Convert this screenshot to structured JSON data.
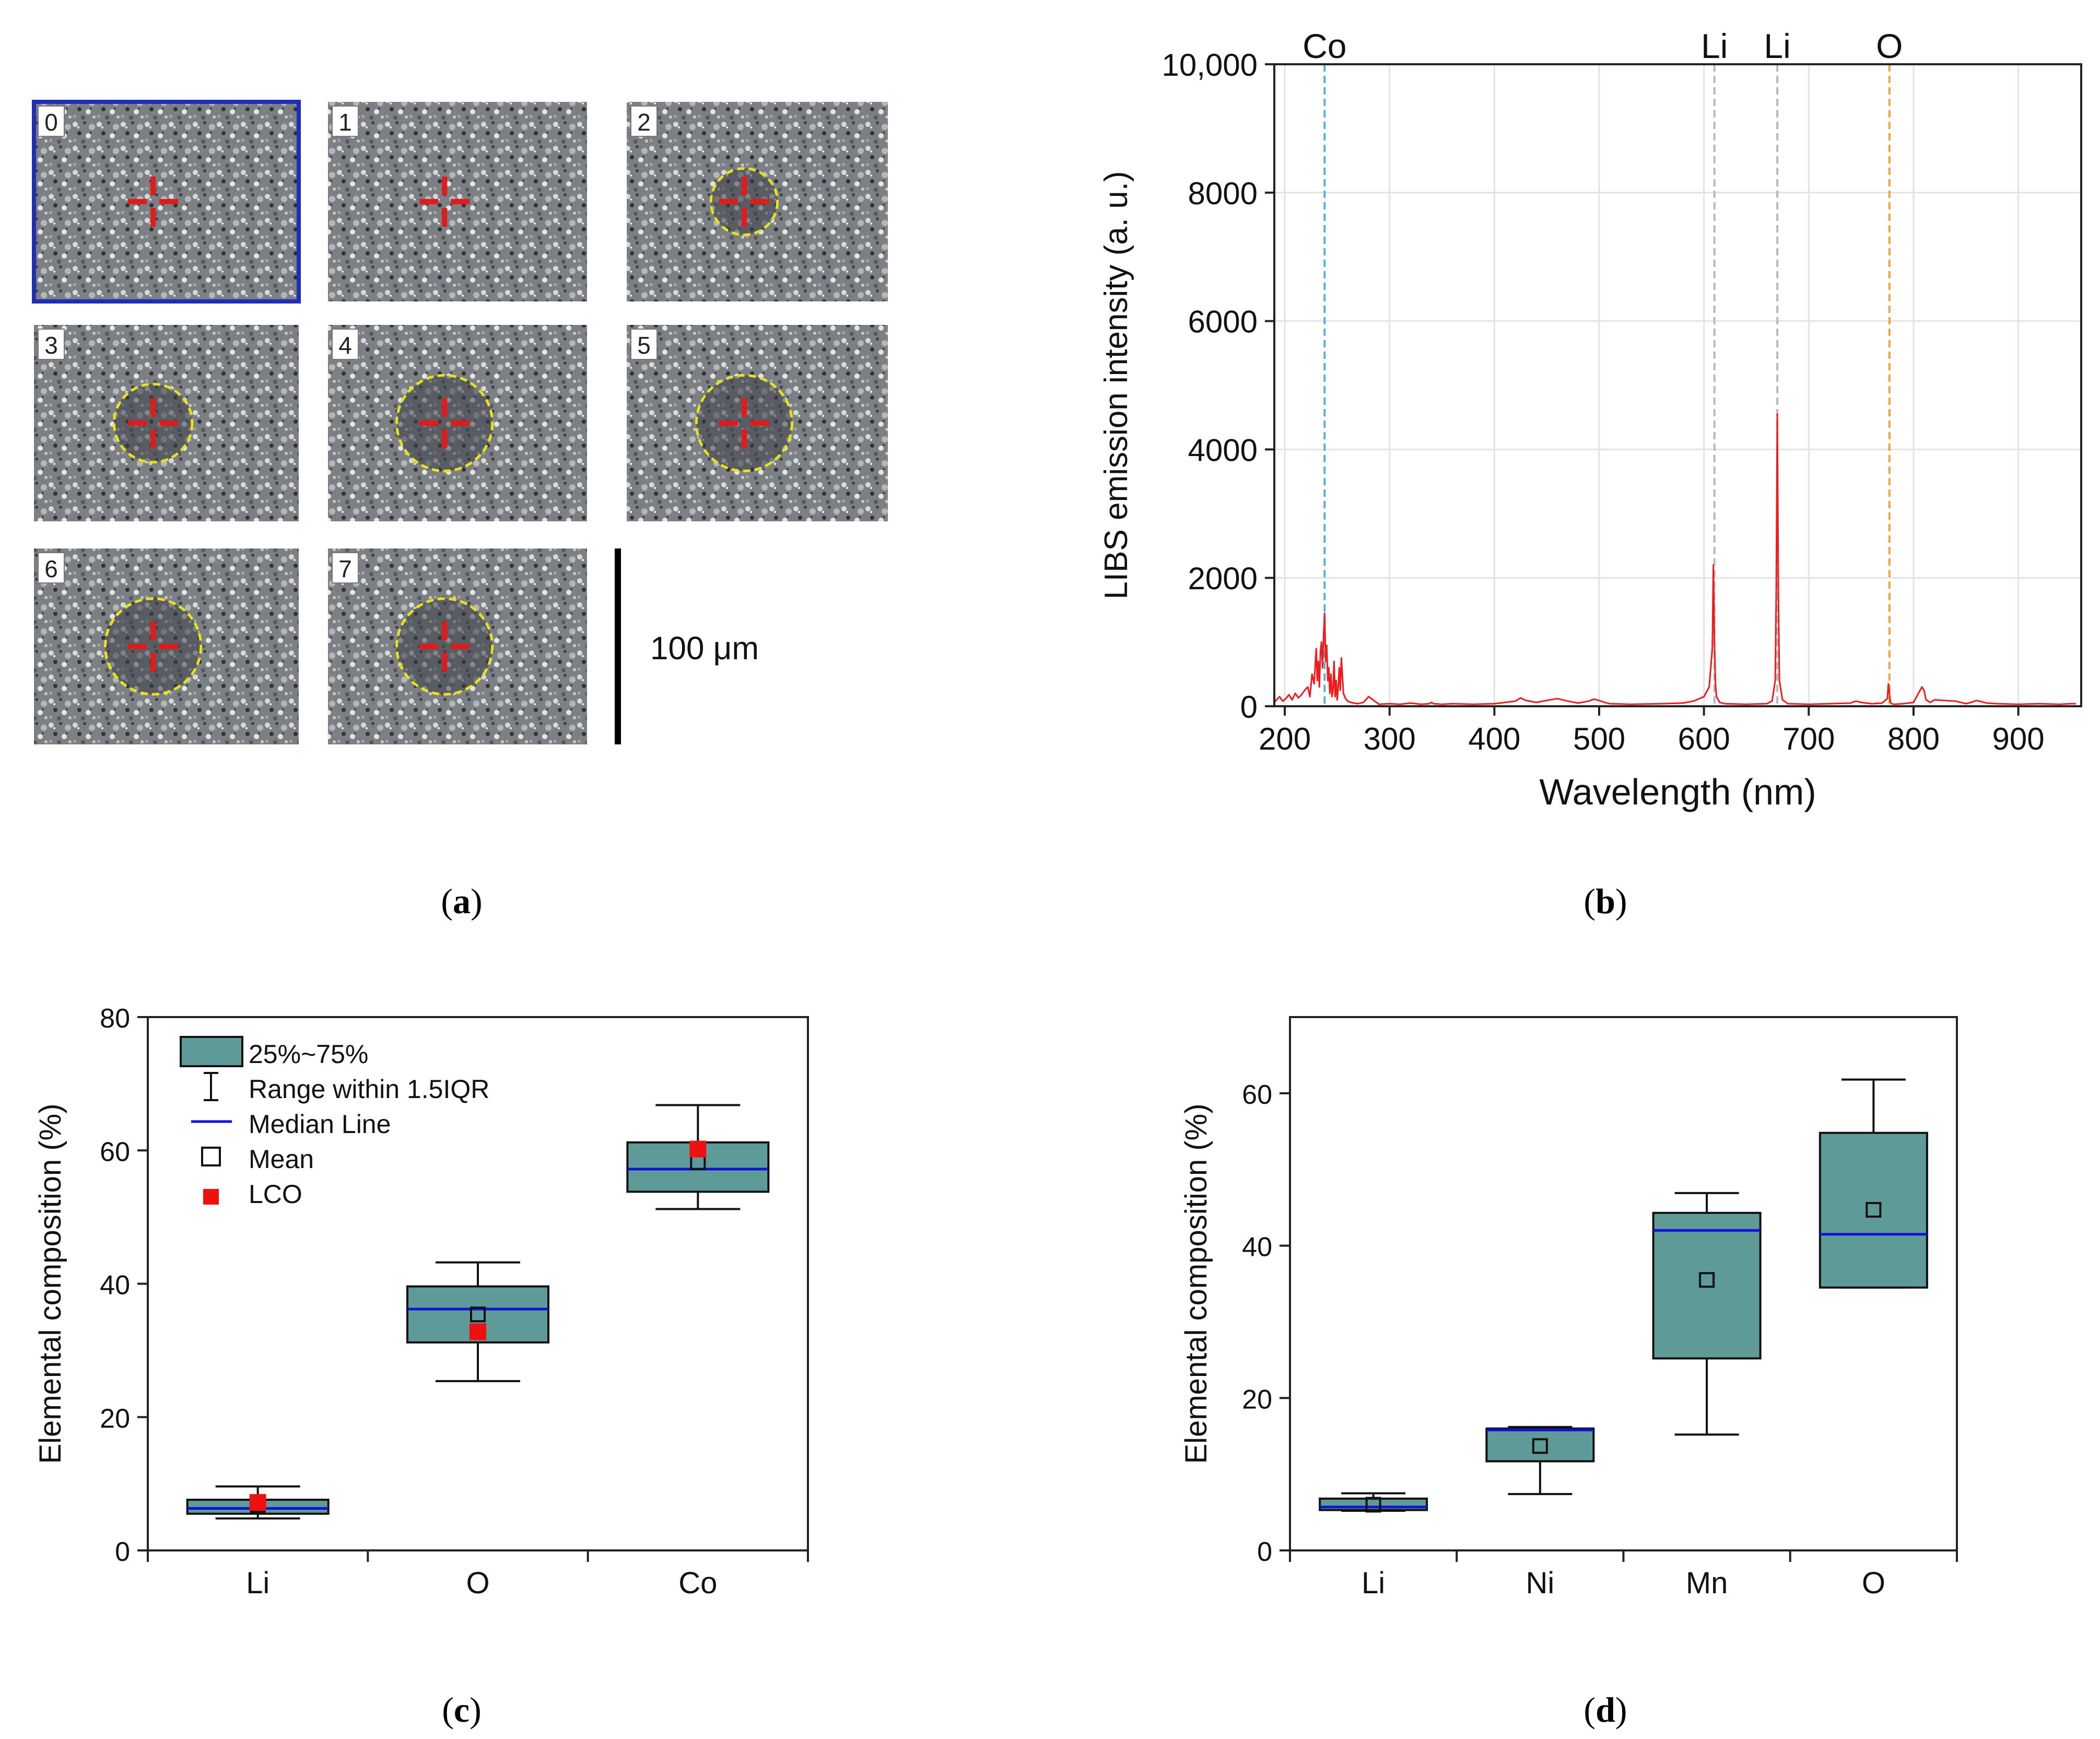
{
  "panels": {
    "a": {
      "label_letter": "a",
      "frames": [
        "0",
        "1",
        "2",
        "3",
        "4",
        "5",
        "6",
        "7"
      ],
      "selected_frame": "0",
      "ablation_crater_radius": [
        0,
        0,
        0.35,
        0.55,
        0.85,
        0.85,
        0.85,
        0.85
      ],
      "scale_bar_label": "100 μm",
      "colors": {
        "selected_border": "#1f2fb5",
        "crosshair": "#e01b1b",
        "crater_ring": "#e8e21a"
      }
    },
    "b": {
      "label_letter": "b",
      "element_labels": [
        "Co",
        "Li",
        "Li",
        "O"
      ]
    },
    "c": {
      "label_letter": "c"
    },
    "d": {
      "label_letter": "d"
    }
  },
  "chart_data": [
    {
      "id": "b",
      "type": "line",
      "title": "",
      "xlabel": "Wavelength (nm)",
      "ylabel": "LIBS emission intensity (a. u.)",
      "xlim": [
        190,
        960
      ],
      "ylim": [
        0,
        10000
      ],
      "xticks": [
        200,
        300,
        400,
        500,
        600,
        700,
        800,
        900
      ],
      "yticks": [
        0,
        2000,
        4000,
        6000,
        8000,
        10000
      ],
      "ytick_labels": [
        "0",
        "2000",
        "4000",
        "6000",
        "8000",
        "10,000"
      ],
      "grid": true,
      "series": [
        {
          "name": "LIBS spectrum",
          "color": "#ee1c1c",
          "x": [
            190,
            195,
            198,
            201,
            204,
            207,
            210,
            213,
            216,
            219,
            222,
            224,
            226,
            228,
            230,
            231,
            232,
            233,
            234,
            235,
            236,
            237,
            238,
            239,
            240,
            241,
            242,
            243,
            244,
            245,
            246,
            247,
            248,
            249,
            250,
            251,
            252,
            253,
            254,
            256,
            258,
            260,
            263,
            266,
            270,
            275,
            280,
            290,
            300,
            310,
            320,
            330,
            338,
            340,
            342,
            350,
            360,
            380,
            400,
            420,
            425,
            430,
            440,
            450,
            460,
            470,
            480,
            490,
            495,
            500,
            505,
            510,
            530,
            560,
            580,
            590,
            600,
            605,
            608,
            609,
            610,
            611,
            612,
            615,
            620,
            640,
            660,
            665,
            668,
            669,
            670,
            671,
            672,
            675,
            680,
            700,
            720,
            740,
            745,
            750,
            760,
            770,
            775,
            776,
            777,
            778,
            779,
            782,
            790,
            800,
            808,
            810,
            812,
            816,
            820,
            840,
            850,
            855,
            860,
            870,
            880,
            900,
            920,
            940,
            950,
            955
          ],
          "y": [
            60,
            150,
            80,
            120,
            180,
            100,
            200,
            130,
            180,
            250,
            300,
            150,
            500,
            350,
            900,
            400,
            700,
            300,
            850,
            1000,
            600,
            1100,
            1450,
            700,
            950,
            400,
            600,
            200,
            500,
            150,
            250,
            700,
            150,
            400,
            100,
            300,
            600,
            250,
            750,
            200,
            120,
            80,
            60,
            50,
            40,
            60,
            150,
            30,
            40,
            30,
            50,
            30,
            40,
            60,
            40,
            30,
            40,
            30,
            40,
            80,
            130,
            90,
            60,
            90,
            120,
            80,
            50,
            80,
            110,
            90,
            60,
            40,
            30,
            40,
            50,
            80,
            150,
            300,
            900,
            2200,
            1000,
            350,
            150,
            60,
            40,
            30,
            40,
            80,
            400,
            1800,
            4550,
            1800,
            400,
            100,
            40,
            30,
            40,
            50,
            80,
            60,
            40,
            50,
            120,
            350,
            200,
            60,
            40,
            30,
            40,
            60,
            300,
            250,
            100,
            60,
            100,
            80,
            40,
            60,
            90,
            50,
            40,
            30,
            40,
            30,
            40,
            40
          ]
        }
      ],
      "annotations": [
        {
          "label": "Co",
          "x": 238,
          "color": "#5aaee0"
        },
        {
          "label": "Li",
          "x": 610,
          "color": "#b8b8b8"
        },
        {
          "label": "Li",
          "x": 670,
          "color": "#b8b8b8"
        },
        {
          "label": "O",
          "x": 777,
          "color": "#f0a33a"
        }
      ]
    },
    {
      "id": "c",
      "type": "box",
      "title": "",
      "xlabel": "",
      "ylabel": "Elemental composition (%)",
      "categories": [
        "Li",
        "O",
        "Co"
      ],
      "ylim": [
        0,
        80
      ],
      "yticks": [
        0,
        20,
        40,
        60,
        80
      ],
      "boxes": [
        {
          "q1": 5.5,
          "median": 6.3,
          "q3": 7.6,
          "whisker_low": 4.8,
          "whisker_high": 9.6,
          "mean": 6.8,
          "lco": 7.2
        },
        {
          "q1": 31.2,
          "median": 36.2,
          "q3": 39.6,
          "whisker_low": 25.4,
          "whisker_high": 43.2,
          "mean": 35.4,
          "lco": 32.8
        },
        {
          "q1": 53.8,
          "median": 57.2,
          "q3": 61.2,
          "whisker_low": 51.2,
          "whisker_high": 66.8,
          "mean": 58.2,
          "lco": 60.2
        }
      ],
      "legend": [
        "25%~75%",
        "Range within 1.5IQR",
        "Median Line",
        "Mean",
        "LCO"
      ],
      "legend_position": "top-left",
      "colors": {
        "box": "#5e9a98",
        "median": "#1010d8",
        "lco": "#ee1111"
      }
    },
    {
      "id": "d",
      "type": "box",
      "title": "",
      "xlabel": "",
      "ylabel": "Elemental composition (%)",
      "categories": [
        "Li",
        "Ni",
        "Mn",
        "O"
      ],
      "ylim": [
        0,
        70
      ],
      "yticks": [
        0,
        20,
        40,
        60
      ],
      "boxes": [
        {
          "q1": 5.3,
          "median": 5.7,
          "q3": 6.8,
          "whisker_low": 5.2,
          "whisker_high": 7.5,
          "mean": 6.0
        },
        {
          "q1": 11.7,
          "median": 15.8,
          "q3": 16.0,
          "whisker_low": 7.4,
          "whisker_high": 16.2,
          "mean": 13.7
        },
        {
          "q1": 25.2,
          "median": 42.0,
          "q3": 44.3,
          "whisker_low": 15.2,
          "whisker_high": 46.9,
          "mean": 35.5
        },
        {
          "q1": 34.5,
          "median": 41.5,
          "q3": 54.8,
          "whisker_low": 34.5,
          "whisker_high": 61.8,
          "mean": 44.7
        }
      ],
      "colors": {
        "box": "#5e9a98",
        "median": "#1010d8"
      }
    }
  ]
}
